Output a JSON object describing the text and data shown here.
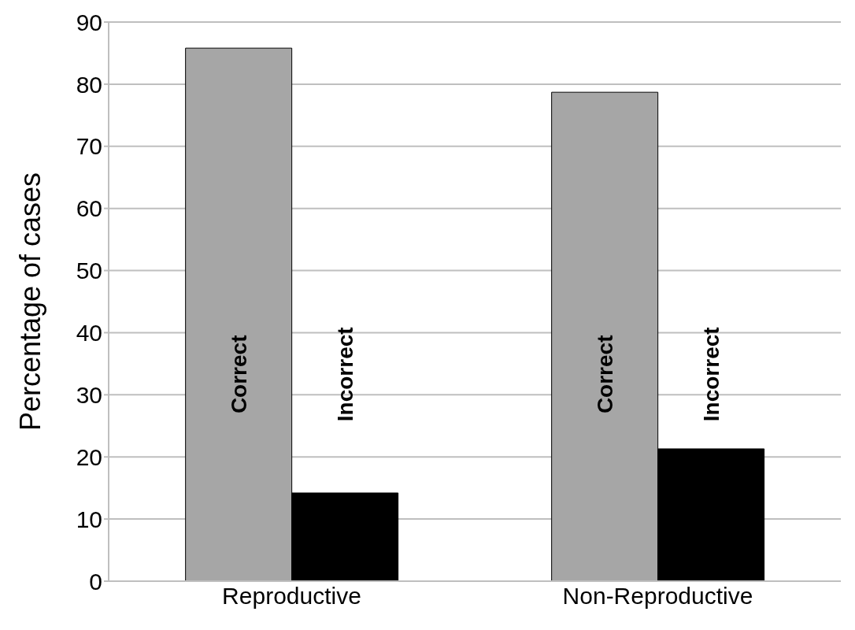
{
  "chart_data": {
    "type": "bar",
    "ylabel": "Percentage of cases",
    "categories": [
      "Reproductive",
      "Non-Reproductive"
    ],
    "series": [
      {
        "name": "Correct",
        "color": "#a6a6a6",
        "values": [
          85.8,
          78.7
        ]
      },
      {
        "name": "Incorrect",
        "color": "#000000",
        "values": [
          14.2,
          21.3
        ]
      }
    ],
    "ylim": [
      0,
      90
    ],
    "yticks": [
      0,
      10,
      20,
      30,
      40,
      50,
      60,
      70,
      80,
      90
    ],
    "grid": "y"
  }
}
